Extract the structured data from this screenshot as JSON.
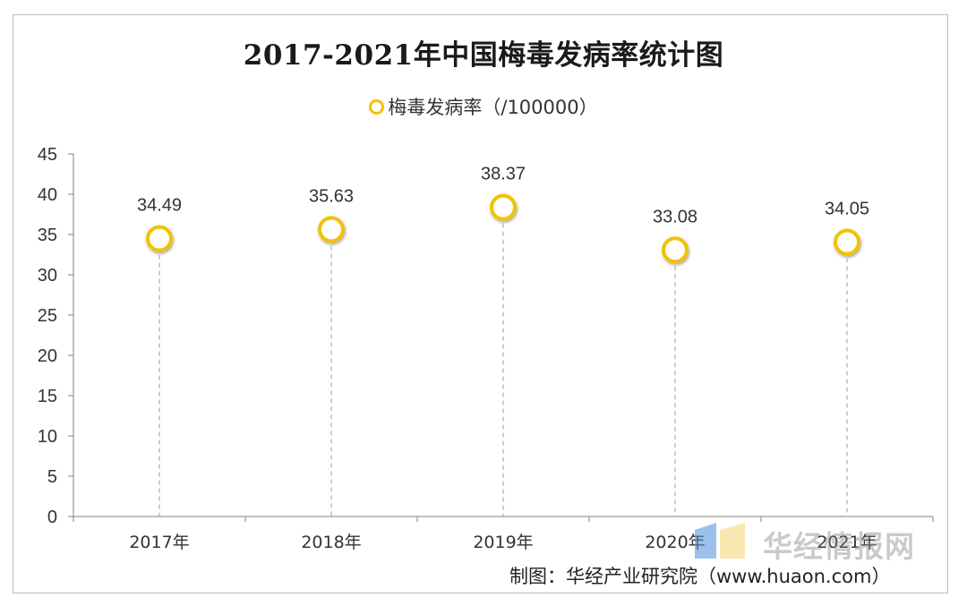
{
  "chart_data": {
    "type": "scatter",
    "title": "2017-2021年中国梅毒发病率统计图",
    "legend": [
      "梅毒发病率（/100000）"
    ],
    "legend_position": "top-center",
    "categories": [
      "2017年",
      "2018年",
      "2019年",
      "2020年",
      "2021年"
    ],
    "series": [
      {
        "name": "梅毒发病率（/100000）",
        "values": [
          34.49,
          35.63,
          38.37,
          33.08,
          34.05
        ]
      }
    ],
    "data_labels": [
      "34.49",
      "35.63",
      "38.37",
      "33.08",
      "34.05"
    ],
    "ylim": [
      0,
      45
    ],
    "yticks": [
      "0",
      "5",
      "10",
      "15",
      "20",
      "25",
      "30",
      "35",
      "40",
      "45"
    ],
    "xlabel": "",
    "ylabel": "",
    "grid": false,
    "marker_color": "#f2c200",
    "drop_line_color": "#9e9e9e"
  },
  "source": "制图：华经产业研究院（www.huaon.com）",
  "watermark": "华经情报网"
}
